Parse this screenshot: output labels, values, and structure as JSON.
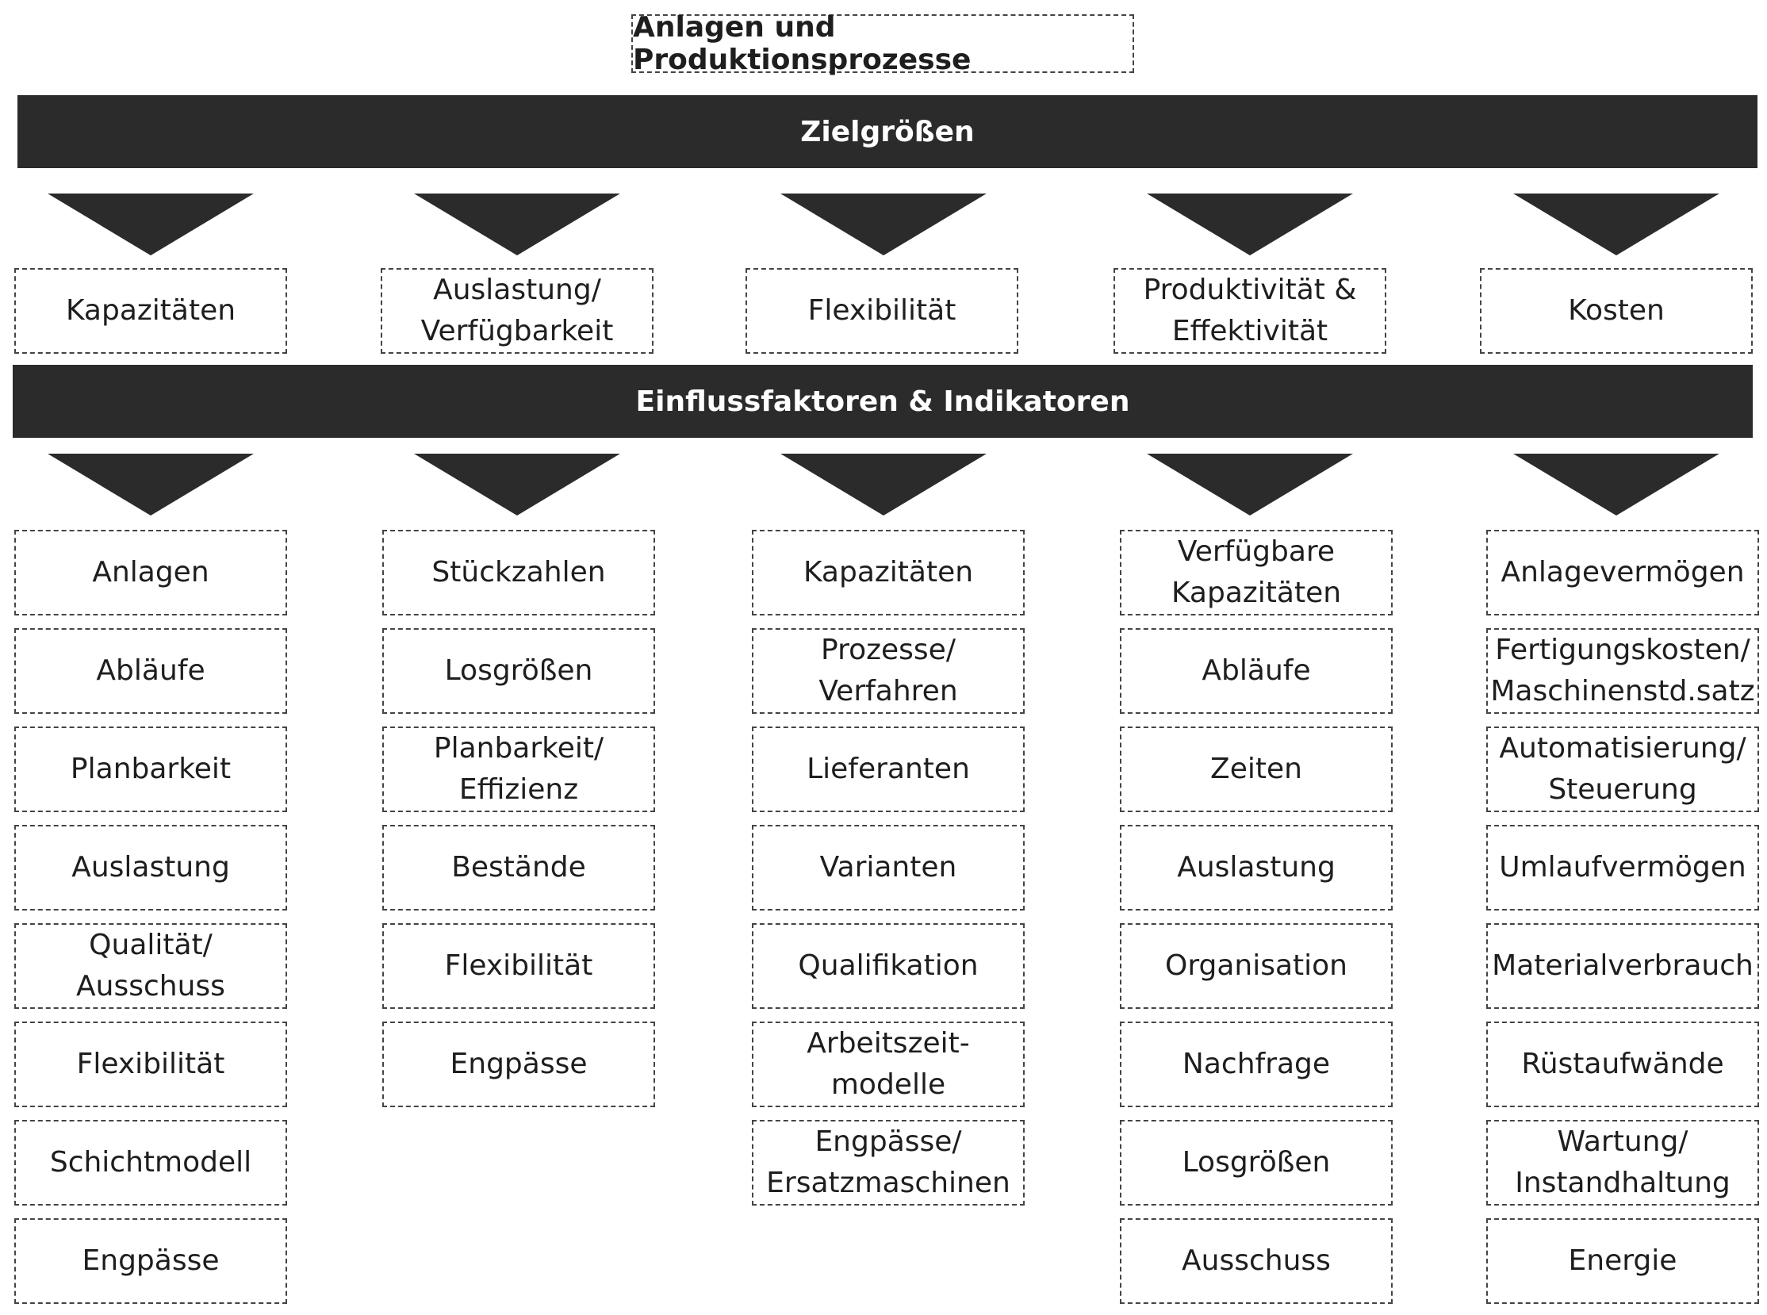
{
  "title": "Anlagen und Produktionsprozesse",
  "bar_top": "Zielgrößen",
  "bar_mid": "Einflussfaktoren & Indikatoren",
  "targets": [
    "Kapazitäten",
    "Auslastung/\nVerfügbarkeit",
    "Flexibilität",
    "Produktivität &\nEffektivität",
    "Kosten"
  ],
  "columns": [
    [
      "Anlagen",
      "Abläufe",
      "Planbarkeit",
      "Auslastung",
      "Qualität/\nAusschuss",
      "Flexibilität",
      "Schichtmodell",
      "Engpässe"
    ],
    [
      "Stückzahlen",
      "Losgrößen",
      "Planbarkeit/\nEffizienz",
      "Bestände",
      "Flexibilität",
      "Engpässe"
    ],
    [
      "Kapazitäten",
      "Prozesse/\nVerfahren",
      "Lieferanten",
      "Varianten",
      "Qualifikation",
      "Arbeitszeit-\nmodelle",
      "Engpässe/\nErsatzmaschinen"
    ],
    [
      "Verfügbare\nKapazitäten",
      "Abläufe",
      "Zeiten",
      "Auslastung",
      "Organisation",
      "Nachfrage",
      "Losgrößen",
      "Ausschuss"
    ],
    [
      "Anlagevermögen",
      "Fertigungskosten/\nMaschinenstd.satz",
      "Automatisierung/\nSteuerung",
      "Umlaufvermögen",
      "Materialverbrauch",
      "Rüstaufwände",
      "Wartung/\nInstandhaltung",
      "Energie"
    ]
  ]
}
